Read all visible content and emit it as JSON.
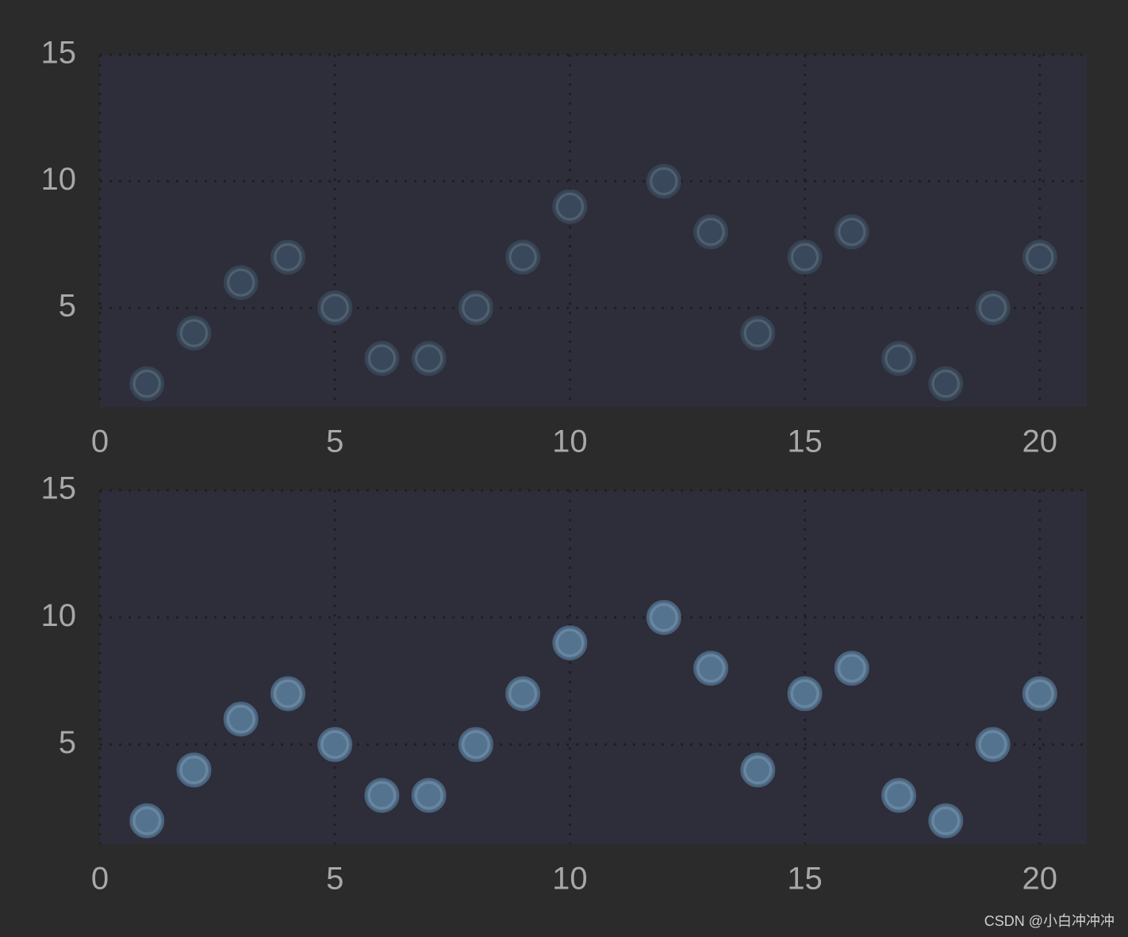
{
  "chart_data": [
    {
      "type": "scatter",
      "x": [
        1,
        2,
        3,
        4,
        5,
        6,
        7,
        8,
        9,
        10,
        12,
        13,
        14,
        15,
        16,
        17,
        18,
        19,
        20
      ],
      "series": [
        {
          "color": "#3a4d5e",
          "values": [
            2,
            4,
            6,
            7,
            5,
            3,
            3,
            5,
            7,
            9,
            10,
            8,
            4,
            7,
            8,
            3,
            2,
            5,
            7
          ]
        }
      ],
      "xlim": [
        0,
        21
      ],
      "ylim": [
        1.08,
        15
      ],
      "xticks": [
        0,
        5,
        10,
        15,
        20
      ],
      "yticks": [
        5,
        10,
        15
      ],
      "grid": true
    },
    {
      "type": "scatter",
      "x": [
        1,
        2,
        3,
        4,
        5,
        6,
        7,
        8,
        9,
        10,
        12,
        13,
        14,
        15,
        16,
        17,
        18,
        19,
        20
      ],
      "series": [
        {
          "color": "#587b98",
          "values": [
            2,
            4,
            6,
            7,
            5,
            3,
            3,
            5,
            7,
            9,
            10,
            8,
            4,
            7,
            8,
            3,
            2,
            5,
            7
          ]
        }
      ],
      "xlim": [
        0,
        21
      ],
      "ylim": [
        1.08,
        15
      ],
      "xticks": [
        0,
        5,
        10,
        15,
        20
      ],
      "yticks": [
        5,
        10,
        15
      ],
      "grid": true
    }
  ],
  "watermark": "CSDN @小白冲冲冲"
}
